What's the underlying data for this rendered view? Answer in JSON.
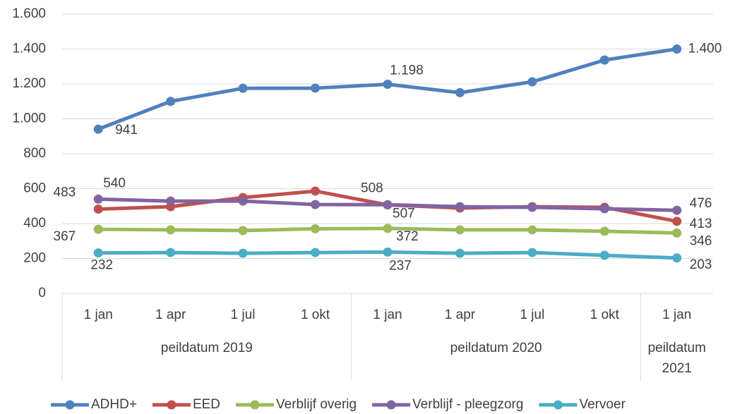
{
  "chart_data": {
    "type": "line",
    "categories": [
      "1 jan",
      "1 apr",
      "1 jul",
      "1 okt",
      "1 jan",
      "1 apr",
      "1 jul",
      "1 okt",
      "1 jan"
    ],
    "x_groups": [
      {
        "label": "peildatum 2019",
        "count": 4
      },
      {
        "label": "peildatum 2020",
        "count": 4
      },
      {
        "label": "peildatum 2021",
        "count": 1
      }
    ],
    "series": [
      {
        "name": "ADHD+",
        "color": "#4f81bd",
        "values": [
          941,
          1100,
          1175,
          1176,
          1198,
          1150,
          1212,
          1337,
          1400
        ],
        "value_labels": [
          "941",
          null,
          null,
          null,
          "1.198",
          null,
          null,
          null,
          "1.400"
        ]
      },
      {
        "name": "EED",
        "color": "#c0504d",
        "values": [
          483,
          497,
          549,
          586,
          507,
          489,
          497,
          493,
          413
        ],
        "value_labels": [
          "483",
          null,
          null,
          null,
          "507",
          null,
          null,
          null,
          "413"
        ]
      },
      {
        "name": "Verblijf overig",
        "color": "#9bbb59",
        "values": [
          367,
          364,
          360,
          370,
          372,
          364,
          364,
          356,
          346
        ],
        "value_labels": [
          "367",
          null,
          null,
          null,
          "372",
          null,
          null,
          null,
          "346"
        ]
      },
      {
        "name": "Verblijf - pleegzorg",
        "color": "#8064a2",
        "values": [
          540,
          529,
          529,
          509,
          508,
          497,
          493,
          485,
          476
        ],
        "value_labels": [
          "540",
          null,
          null,
          null,
          "508",
          null,
          null,
          null,
          "476"
        ]
      },
      {
        "name": "Vervoer",
        "color": "#4bacc6",
        "values": [
          232,
          234,
          230,
          234,
          237,
          230,
          234,
          218,
          203
        ],
        "value_labels": [
          "232",
          null,
          null,
          null,
          "237",
          null,
          null,
          null,
          "203"
        ]
      }
    ],
    "ylim": [
      0,
      1600
    ],
    "yticks": [
      0,
      200,
      400,
      600,
      800,
      {
        "value": 1000,
        "label": "1.000"
      },
      {
        "value": 1200,
        "label": "1.200"
      },
      {
        "value": 1400,
        "label": "1.400"
      },
      {
        "value": 1600,
        "label": "1.600"
      }
    ],
    "grid": true,
    "legend": "bottom"
  }
}
